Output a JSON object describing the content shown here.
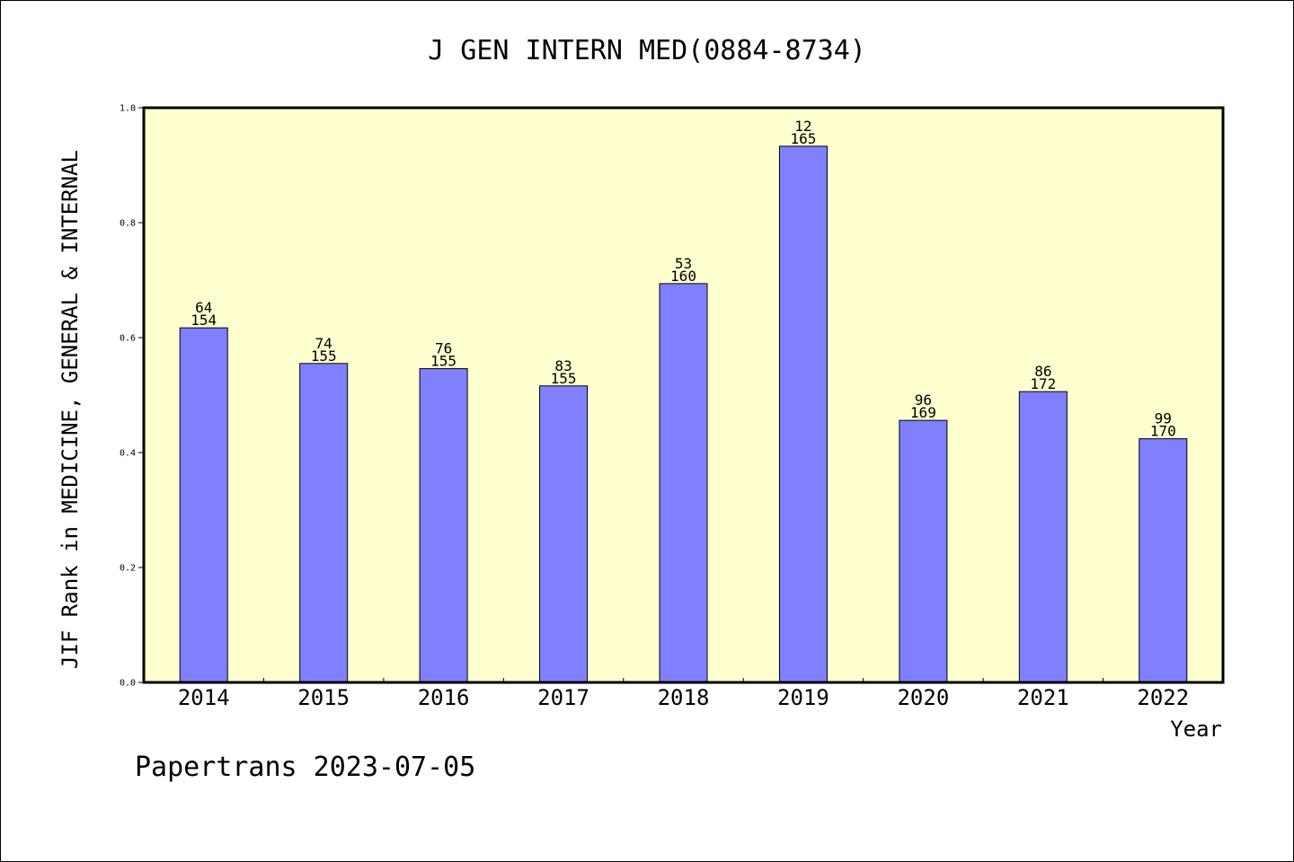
{
  "chart_data": {
    "type": "bar",
    "title": "J GEN INTERN MED(0884-8734)",
    "xlabel": "Year",
    "ylabel": "JIF Rank in MEDICINE, GENERAL & INTERNAL",
    "ylim": [
      0,
      1.0
    ],
    "yticks": [
      "0.0",
      "0.2",
      "0.4",
      "0.6",
      "0.8",
      "1.0"
    ],
    "categories": [
      "2014",
      "2015",
      "2016",
      "2017",
      "2018",
      "2019",
      "2020",
      "2021",
      "2022"
    ],
    "values": [
      0.617,
      0.555,
      0.546,
      0.516,
      0.694,
      0.933,
      0.456,
      0.506,
      0.424
    ],
    "rank": [
      "64",
      "74",
      "76",
      "83",
      "53",
      "12",
      "96",
      "86",
      "99"
    ],
    "total": [
      "154",
      "155",
      "155",
      "155",
      "160",
      "165",
      "169",
      "172",
      "170"
    ],
    "grid": false,
    "colors": {
      "plot_bg": "#FFFFD0",
      "bar_fill": "#8080FF",
      "bar_stroke": "#000000"
    }
  },
  "footer": {
    "text": "Papertrans 2023-07-05"
  }
}
